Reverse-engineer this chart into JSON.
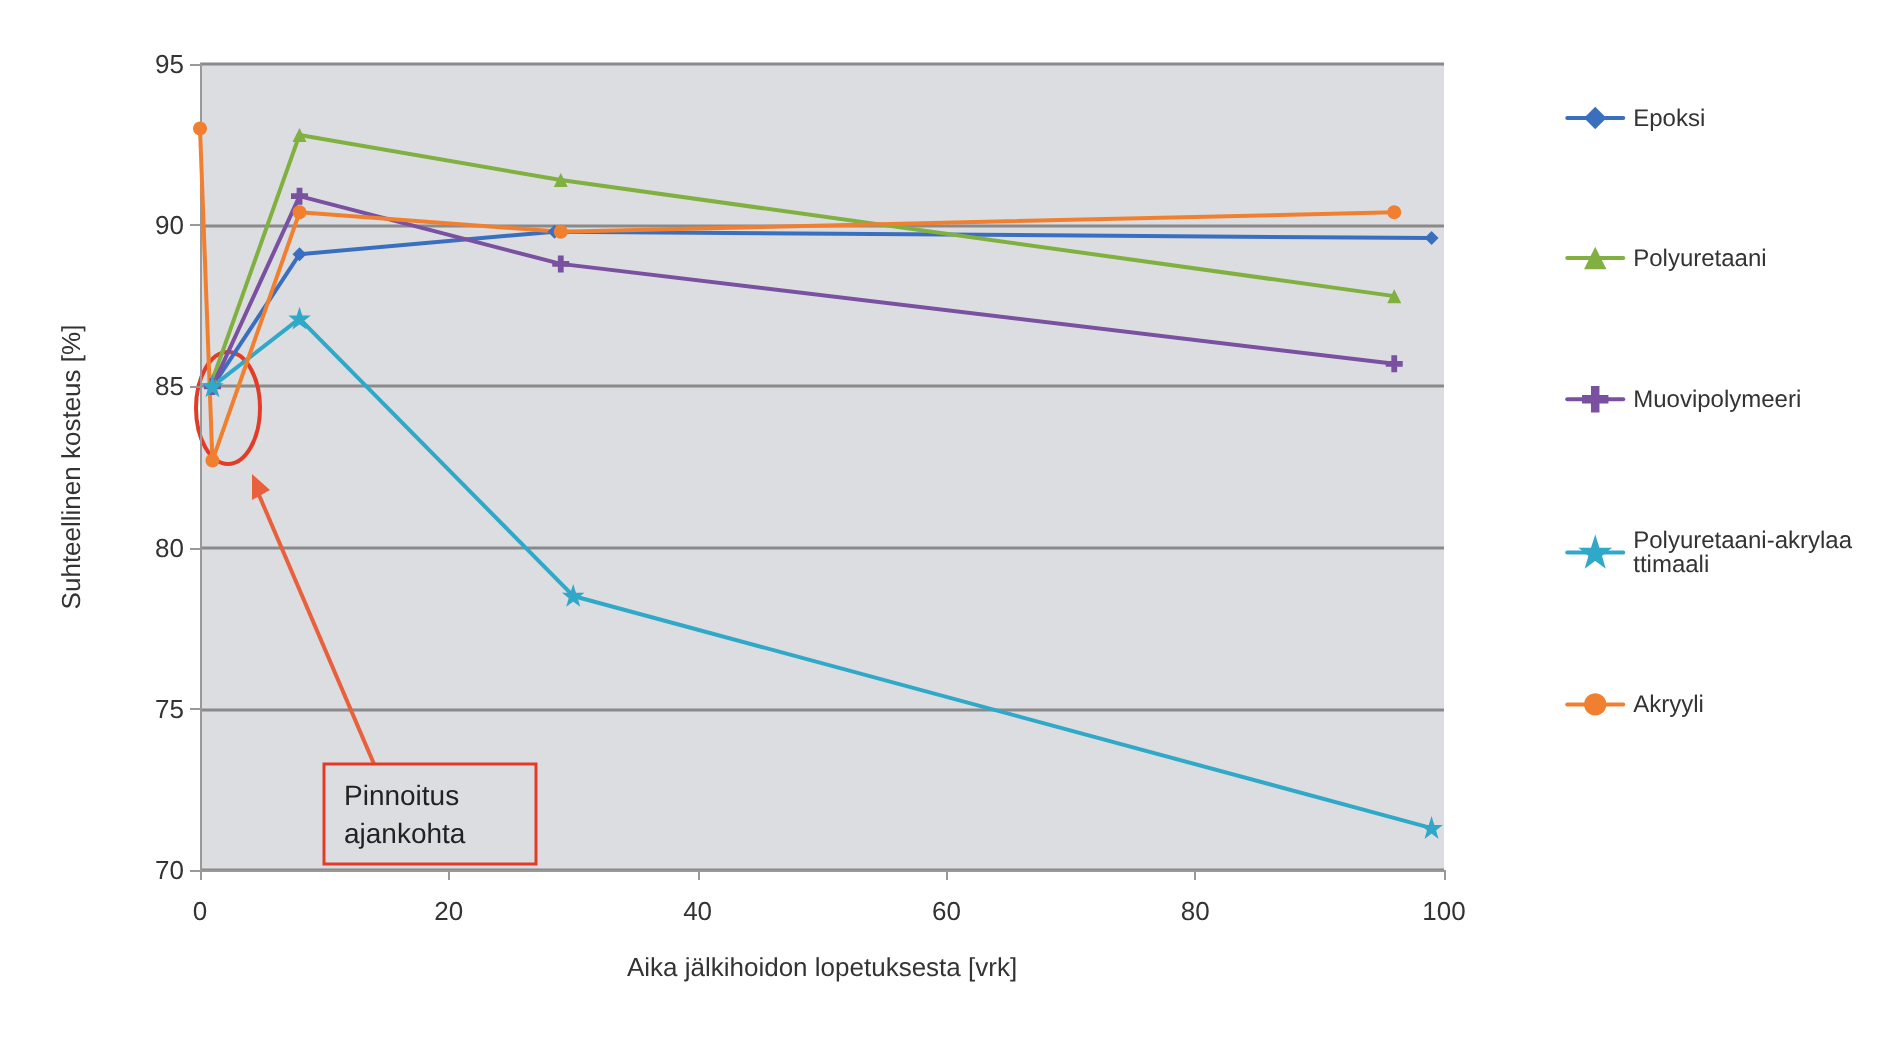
{
  "chart_data": {
    "type": "line",
    "xlabel": "Aika jälkihoidon lopetuksesta [vrk]",
    "ylabel": "Suhteellinen kosteus [%]",
    "xlim": [
      0,
      100
    ],
    "xticks": [
      0,
      20,
      40,
      60,
      80,
      100
    ],
    "ylim": [
      70,
      95
    ],
    "yticks": [
      70,
      75,
      80,
      85,
      90,
      95
    ],
    "grid": "y",
    "legend": "right",
    "line_style": "solid",
    "annotations": [
      "Pinnoitus ajankohta"
    ],
    "series": [
      {
        "name": "Epoksi",
        "color": "#3a6fc0",
        "marker": "diamond",
        "x": [
          1,
          8,
          28.5,
          99
        ],
        "values": [
          85,
          89.1,
          89.8,
          89.6
        ]
      },
      {
        "name": "Polyuretaani",
        "color": "#80b040",
        "marker": "triangle",
        "x": [
          1,
          8,
          29,
          96
        ],
        "values": [
          85.2,
          92.8,
          91.4,
          87.8
        ]
      },
      {
        "name": "Muovipolymeeri",
        "color": "#7a50a0",
        "marker": "cross",
        "x": [
          1,
          8,
          29,
          96
        ],
        "values": [
          85,
          90.9,
          88.8,
          85.7
        ]
      },
      {
        "name": "Polyuretaani-akrylaattimaali",
        "color": "#30a8c8",
        "marker": "star",
        "x": [
          1,
          8,
          30,
          99
        ],
        "values": [
          85,
          87.1,
          78.5,
          71.3
        ]
      },
      {
        "name": "Akryyli",
        "color": "#f08030",
        "marker": "circle",
        "x": [
          0,
          1,
          8,
          29,
          96
        ],
        "values": [
          93,
          82.7,
          90.4,
          89.8,
          90.4
        ]
      }
    ]
  }
}
